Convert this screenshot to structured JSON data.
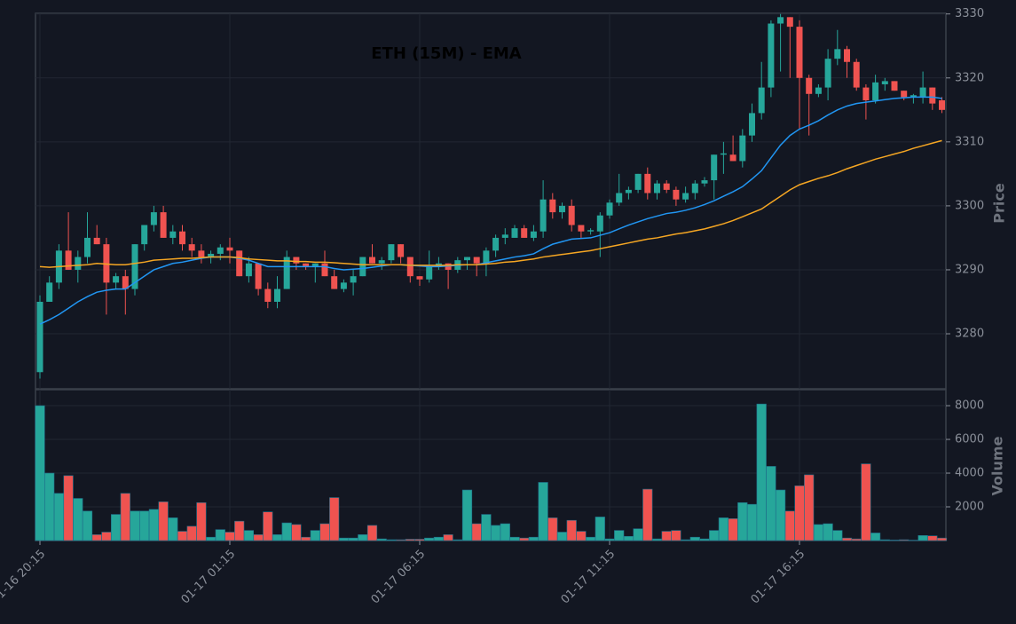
{
  "chart_data": [
    {
      "type": "candlestick",
      "title": "ETH (15M) - EMA",
      "y_label": "Price",
      "up_color": "#26a69a",
      "down_color": "#ef5350",
      "grid": true,
      "categories": [
        "01-16 20:15",
        null,
        null,
        null,
        null,
        null,
        null,
        null,
        null,
        null,
        null,
        null,
        null,
        null,
        null,
        null,
        null,
        null,
        null,
        null,
        "01-17 01:15",
        null,
        null,
        null,
        null,
        null,
        null,
        null,
        null,
        null,
        null,
        null,
        null,
        null,
        null,
        null,
        null,
        null,
        null,
        null,
        "01-17 06:15",
        null,
        null,
        null,
        null,
        null,
        null,
        null,
        null,
        null,
        null,
        null,
        null,
        null,
        null,
        null,
        null,
        null,
        null,
        null,
        "01-17 11:15",
        null,
        null,
        null,
        null,
        null,
        null,
        null,
        null,
        null,
        null,
        null,
        null,
        null,
        null,
        null,
        null,
        null,
        null,
        null,
        "01-17 16:15",
        null,
        null,
        null,
        null,
        null,
        null,
        null,
        null,
        null,
        null,
        null,
        null,
        null,
        null,
        null
      ],
      "open": [
        3274,
        3285,
        3288,
        3293,
        3290,
        3292,
        3295,
        3294,
        3288,
        3289,
        3287,
        3294,
        3297,
        3299,
        3295,
        3296,
        3294,
        3293,
        3292,
        3292.5,
        3293.5,
        3293,
        3289,
        3291,
        3287,
        3285,
        3287,
        3292,
        3291,
        3290.5,
        3291,
        3289,
        3287,
        3288,
        3289,
        3292,
        3291,
        3291.5,
        3294,
        3292,
        3289,
        3288.5,
        3290.5,
        3291,
        3290,
        3291.5,
        3292,
        3291,
        3293,
        3295,
        3295,
        3296.5,
        3295,
        3296,
        3301,
        3299,
        3300,
        3297,
        3296,
        3296,
        3298.5,
        3300.5,
        3302,
        3302.5,
        3305,
        3302,
        3303.5,
        3302.5,
        3301,
        3302,
        3303.5,
        3304,
        3308,
        3308,
        3307,
        3311,
        3314.5,
        3318.5,
        3328.5,
        3329.5,
        3328,
        3320,
        3317.5,
        3318.5,
        3323,
        3324.5,
        3322.5,
        3318.5,
        3316.5,
        3319,
        3319.5,
        3318,
        3317,
        3317,
        3318.5,
        3316.5
      ],
      "high": [
        3286,
        3289,
        3294,
        3299,
        3293,
        3299,
        3297,
        3295,
        3289.5,
        3290,
        3294,
        3297,
        3300,
        3300,
        3297,
        3297,
        3295,
        3294,
        3293,
        3294,
        3295,
        3293,
        3292,
        3291,
        3288,
        3289,
        3293,
        3292,
        3291,
        3291,
        3293,
        3290,
        3288.5,
        3290,
        3292,
        3294,
        3292,
        3294,
        3294,
        3292,
        3289,
        3293,
        3292,
        3291,
        3292,
        3292,
        3292,
        3293.5,
        3295.5,
        3296.5,
        3297,
        3297,
        3297,
        3304,
        3302,
        3300.5,
        3301,
        3297,
        3296.5,
        3299,
        3301,
        3305,
        3303,
        3305,
        3306,
        3304,
        3304,
        3303,
        3303,
        3304,
        3304.5,
        3308,
        3310,
        3311,
        3312,
        3316,
        3322.5,
        3329,
        3330,
        3329.5,
        3329,
        3320.5,
        3319,
        3324.5,
        3327.5,
        3325,
        3323,
        3319,
        3320.5,
        3320,
        3319.5,
        3318,
        3317.5,
        3321,
        3318.5,
        3317
      ],
      "low": [
        3273,
        3285,
        3287,
        3290,
        3288,
        3291,
        3294,
        3283,
        3287,
        3283,
        3286,
        3293,
        3296,
        3295,
        3294,
        3293,
        3292,
        3291,
        3291,
        3291.5,
        3291,
        3289,
        3288,
        3286,
        3284,
        3284,
        3287,
        3290,
        3290,
        3288,
        3289,
        3287,
        3286.5,
        3286,
        3289,
        3291,
        3290,
        3291,
        3291,
        3288,
        3287.5,
        3288,
        3290,
        3287,
        3289.5,
        3290,
        3289,
        3289,
        3292,
        3294,
        3295,
        3295,
        3294.5,
        3295,
        3298,
        3298,
        3296,
        3295,
        3295.5,
        3292,
        3298,
        3300,
        3301,
        3302,
        3301,
        3301,
        3302,
        3300,
        3300.5,
        3301,
        3303,
        3301,
        3305,
        3307,
        3306,
        3310,
        3313.5,
        3317,
        3321,
        3320,
        3312,
        3311,
        3317,
        3316.5,
        3322,
        3320,
        3318,
        3313.5,
        3316,
        3318,
        3318,
        3316.5,
        3316,
        3316,
        3315,
        3314.5
      ],
      "close": [
        3285,
        3288,
        3293,
        3290,
        3292,
        3295,
        3294,
        3288,
        3289,
        3287,
        3294,
        3297,
        3299,
        3295,
        3296,
        3294,
        3293,
        3292,
        3292.5,
        3293.5,
        3293,
        3289,
        3291,
        3287,
        3285,
        3287,
        3292,
        3291,
        3290.5,
        3291,
        3289,
        3287,
        3288,
        3289,
        3292,
        3291,
        3291.5,
        3294,
        3292,
        3289,
        3288.5,
        3290.5,
        3291,
        3290,
        3291.5,
        3292,
        3291,
        3293,
        3295,
        3295.5,
        3296.5,
        3295,
        3296,
        3301,
        3299,
        3300,
        3297,
        3296,
        3296.2,
        3298.5,
        3300.5,
        3302,
        3302.5,
        3305,
        3302,
        3303.5,
        3302.5,
        3301,
        3302,
        3303.5,
        3304,
        3308,
        3308.2,
        3307,
        3311,
        3314.5,
        3318.5,
        3328.5,
        3329.5,
        3328,
        3320,
        3317.5,
        3318.5,
        3323,
        3324.5,
        3322.5,
        3318.5,
        3316.5,
        3319.3,
        3319.5,
        3318,
        3317,
        3317.3,
        3318.5,
        3316,
        3315
      ],
      "lines": [
        {
          "color": "#2196f3",
          "values": [
            3281.5,
            3282.2,
            3283,
            3284,
            3285,
            3285.8,
            3286.5,
            3286.8,
            3287,
            3287,
            3288,
            3289,
            3290,
            3290.5,
            3291,
            3291.2,
            3291.5,
            3291.8,
            3292,
            3292,
            3292,
            3291.8,
            3291.5,
            3291,
            3290.5,
            3290.5,
            3290.5,
            3290.5,
            3290.5,
            3290.5,
            3290.5,
            3290.2,
            3290,
            3290.1,
            3290.2,
            3290.4,
            3290.6,
            3290.8,
            3290.8,
            3290.7,
            3290.6,
            3290.5,
            3290.5,
            3290.6,
            3290.7,
            3290.8,
            3290.8,
            3291.1,
            3291.4,
            3291.7,
            3292,
            3292.2,
            3292.5,
            3293.3,
            3294,
            3294.4,
            3294.8,
            3294.9,
            3295,
            3295.4,
            3295.8,
            3296.4,
            3297,
            3297.5,
            3298,
            3298.4,
            3298.8,
            3299,
            3299.3,
            3299.7,
            3300.2,
            3300.8,
            3301.5,
            3302.2,
            3303,
            3304.2,
            3305.5,
            3307.5,
            3309.5,
            3311,
            3312,
            3312.6,
            3313.3,
            3314.2,
            3315,
            3315.6,
            3316,
            3316.2,
            3316.4,
            3316.6,
            3316.8,
            3316.9,
            3317,
            3317,
            3317,
            3316.8
          ]
        },
        {
          "color": "#f5a623",
          "values": [
            3290.5,
            3290.4,
            3290.5,
            3290.6,
            3290.7,
            3290.8,
            3291,
            3290.9,
            3290.8,
            3290.8,
            3291,
            3291.2,
            3291.5,
            3291.6,
            3291.7,
            3291.8,
            3291.8,
            3291.9,
            3292,
            3292,
            3292,
            3291.9,
            3291.7,
            3291.6,
            3291.5,
            3291.4,
            3291.4,
            3291.3,
            3291.3,
            3291.2,
            3291.2,
            3291.1,
            3291,
            3290.9,
            3290.8,
            3290.8,
            3290.8,
            3290.8,
            3290.8,
            3290.7,
            3290.7,
            3290.7,
            3290.7,
            3290.7,
            3290.8,
            3290.8,
            3290.8,
            3290.9,
            3291,
            3291.2,
            3291.3,
            3291.5,
            3291.7,
            3292,
            3292.2,
            3292.4,
            3292.6,
            3292.8,
            3293,
            3293.3,
            3293.6,
            3293.9,
            3294.2,
            3294.5,
            3294.8,
            3295,
            3295.3,
            3295.6,
            3295.8,
            3296.1,
            3296.4,
            3296.8,
            3297.2,
            3297.7,
            3298.3,
            3298.9,
            3299.5,
            3300.5,
            3301.5,
            3302.5,
            3303.3,
            3303.8,
            3304.3,
            3304.7,
            3305.2,
            3305.8,
            3306.3,
            3306.8,
            3307.3,
            3307.7,
            3308.1,
            3308.5,
            3309,
            3309.4,
            3309.8,
            3310.2
          ]
        }
      ],
      "ylim": [
        3271.4,
        3330.1
      ],
      "yticks": [
        3280,
        3290,
        3300,
        3310,
        3320,
        3330
      ]
    },
    {
      "type": "bar",
      "y_label": "Volume",
      "grid": true,
      "values": [
        8000,
        4000,
        2800,
        3850,
        2500,
        1750,
        350,
        500,
        1550,
        2800,
        1750,
        1750,
        1850,
        2300,
        1350,
        550,
        850,
        2250,
        200,
        650,
        500,
        1150,
        600,
        350,
        1700,
        350,
        1050,
        950,
        200,
        600,
        1000,
        2550,
        150,
        150,
        350,
        900,
        100,
        50,
        50,
        80,
        80,
        150,
        200,
        350,
        50,
        3000,
        1000,
        1550,
        900,
        1000,
        200,
        150,
        200,
        3450,
        1350,
        500,
        1200,
        550,
        200,
        1400,
        100,
        600,
        250,
        700,
        3050,
        100,
        550,
        600,
        50,
        200,
        100,
        600,
        1350,
        1300,
        2250,
        2150,
        8100,
        4400,
        3000,
        1750,
        3250,
        3900,
        950,
        1000,
        600,
        150,
        100,
        4550,
        450,
        50,
        30,
        50,
        20,
        300,
        280,
        150
      ],
      "ylim": [
        0,
        8950
      ],
      "yticks": [
        2000,
        4000,
        6000,
        8000
      ]
    }
  ]
}
